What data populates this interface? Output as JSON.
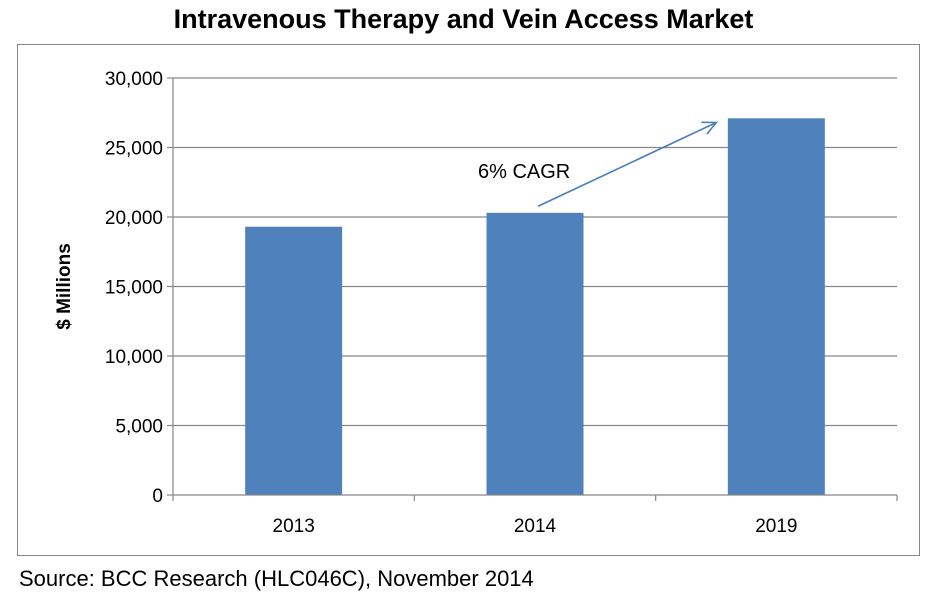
{
  "chart_data": {
    "type": "bar",
    "title": "Intravenous Therapy and Vein Access Market",
    "xlabel": "",
    "ylabel": "$ Millions",
    "categories": [
      "2013",
      "2014",
      "2019"
    ],
    "values": [
      19300,
      20300,
      27100
    ],
    "ylim": [
      0,
      30000
    ],
    "yticks": [
      0,
      5000,
      10000,
      15000,
      20000,
      25000,
      30000
    ],
    "ytick_labels": [
      "0",
      "5,000",
      "10,000",
      "15,000",
      "20,000",
      "25,000",
      "30,000"
    ],
    "grid": true,
    "legend": "none",
    "bar_color": "#4F81BD",
    "annotation": {
      "text": "6% CAGR",
      "arrow_from": {
        "category": "2014",
        "value": 20700
      },
      "arrow_to": {
        "category": "2019",
        "value": 26800
      }
    }
  },
  "source": "Source: BCC Research (HLC046C), November 2014"
}
